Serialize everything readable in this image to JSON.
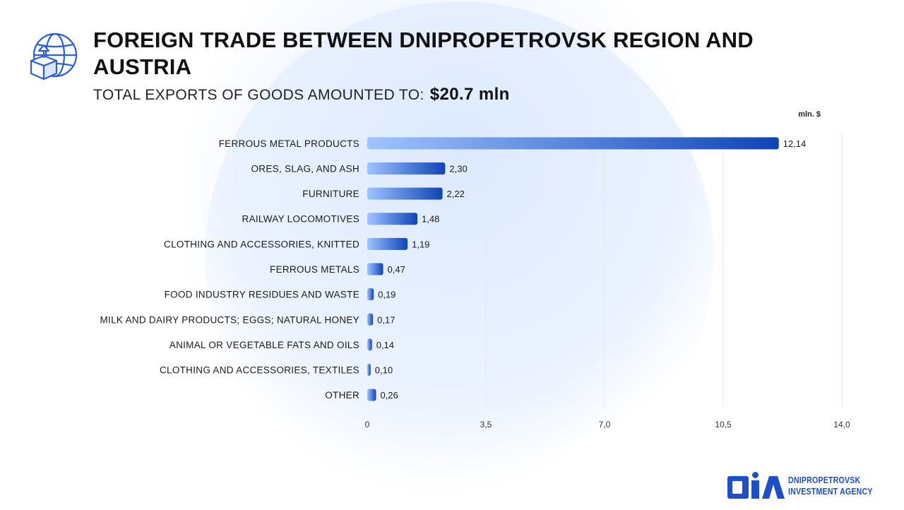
{
  "header": {
    "title": "FOREIGN TRADE BETWEEN DNIPROPETROVSK REGION AND AUSTRIA",
    "subtitle_label": "TOTAL EXPORTS OF GOODS AMOUNTED TO:",
    "subtitle_value": "$20.7 mln",
    "icon": "globe-box-upload-icon"
  },
  "chart_data": {
    "type": "bar",
    "orientation": "horizontal",
    "unit_label": "mln. $",
    "categories": [
      "FERROUS METAL PRODUCTS",
      "ORES, SLAG, AND ASH",
      "FURNITURE",
      "RAILWAY LOCOMOTIVES",
      "CLOTHING AND ACCESSORIES, KNITTED",
      "FERROUS METALS",
      "FOOD INDUSTRY RESIDUES AND WASTE",
      "MILK AND DAIRY PRODUCTS; EGGS; NATURAL HONEY",
      "ANIMAL OR VEGETABLE FATS AND OILS",
      "CLOTHING AND ACCESSORIES, TEXTILES",
      "OTHER"
    ],
    "values": [
      12.14,
      2.3,
      2.22,
      1.48,
      1.19,
      0.47,
      0.19,
      0.17,
      0.14,
      0.1,
      0.26
    ],
    "value_labels": [
      "12,14",
      "2,30",
      "2,22",
      "1,48",
      "1,19",
      "0,47",
      "0,19",
      "0,17",
      "0,14",
      "0,10",
      "0,26"
    ],
    "xlim": [
      0,
      14
    ],
    "ticks": [
      0,
      3.5,
      7,
      10.5,
      14
    ],
    "tick_labels": [
      "0",
      "3,5",
      "7,0",
      "10,5",
      "14,0"
    ],
    "grid": true,
    "colors": {
      "bar_start": "#9ec4ff",
      "bar_end": "#0f44b8",
      "grid": "#e6e9ef"
    }
  },
  "logo": {
    "mark": "DIA",
    "line1": "DNIPROPETROVSK",
    "line2": "INVESTMENT AGENCY",
    "color": "#1f4fc8"
  }
}
